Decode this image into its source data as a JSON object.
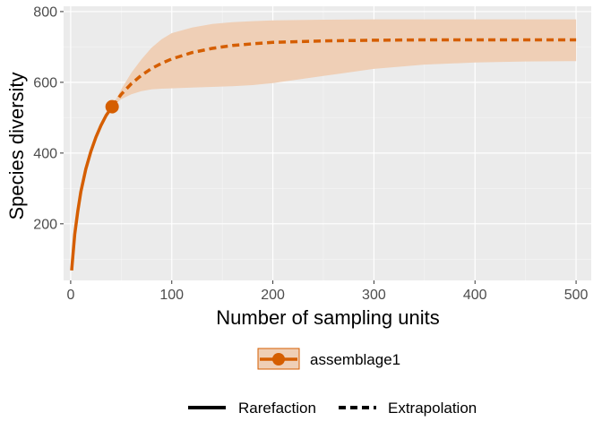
{
  "chart_data": {
    "type": "line",
    "xlabel": "Number of sampling units",
    "ylabel": "Species diversity",
    "xlim": [
      -7,
      515
    ],
    "ylim": [
      40,
      815
    ],
    "xticks": [
      0,
      100,
      200,
      300,
      400,
      500
    ],
    "xtick_labels": [
      "0",
      "100",
      "200",
      "300",
      "400",
      "500"
    ],
    "yticks": [
      200,
      400,
      600,
      800
    ],
    "ytick_labels": [
      "200",
      "400",
      "600",
      "800"
    ],
    "grid": true,
    "legend_position": "bottom",
    "colors": {
      "series": "#d55e00",
      "band": "#efcfb6",
      "panel": "#ebebeb",
      "grid_major": "#ffffff",
      "grid_minor": "#f5f5f5",
      "tick_text": "#4d4d4d"
    },
    "series": [
      {
        "name": "assemblage1",
        "observed": {
          "x": 41,
          "y": 531
        },
        "rarefaction": {
          "x": [
            1,
            2,
            4,
            7,
            10,
            15,
            20,
            25,
            30,
            35,
            41
          ],
          "y": [
            68,
            105,
            170,
            235,
            290,
            355,
            405,
            445,
            478,
            506,
            531
          ]
        },
        "extrapolation": {
          "x": [
            41,
            50,
            60,
            70,
            80,
            90,
            100,
            120,
            140,
            160,
            180,
            200,
            250,
            300,
            350,
            400,
            450,
            500
          ],
          "y": [
            531,
            566,
            596,
            620,
            639,
            654,
            666,
            684,
            696,
            704,
            709,
            713,
            717,
            719,
            720,
            720,
            720,
            720
          ]
        },
        "ci_lower": [
          531,
          552,
          566,
          575,
          580,
          582,
          583,
          585,
          587,
          589,
          592,
          598,
          618,
          638,
          650,
          656,
          659,
          660
        ],
        "ci_upper": [
          531,
          580,
          627,
          665,
          698,
          722,
          739,
          755,
          765,
          770,
          773,
          775,
          777,
          778,
          778,
          778,
          778,
          778
        ]
      }
    ],
    "legend": {
      "assemblage_label": "assemblage1",
      "method_labels": [
        "Rarefaction",
        "Extrapolation"
      ]
    }
  }
}
